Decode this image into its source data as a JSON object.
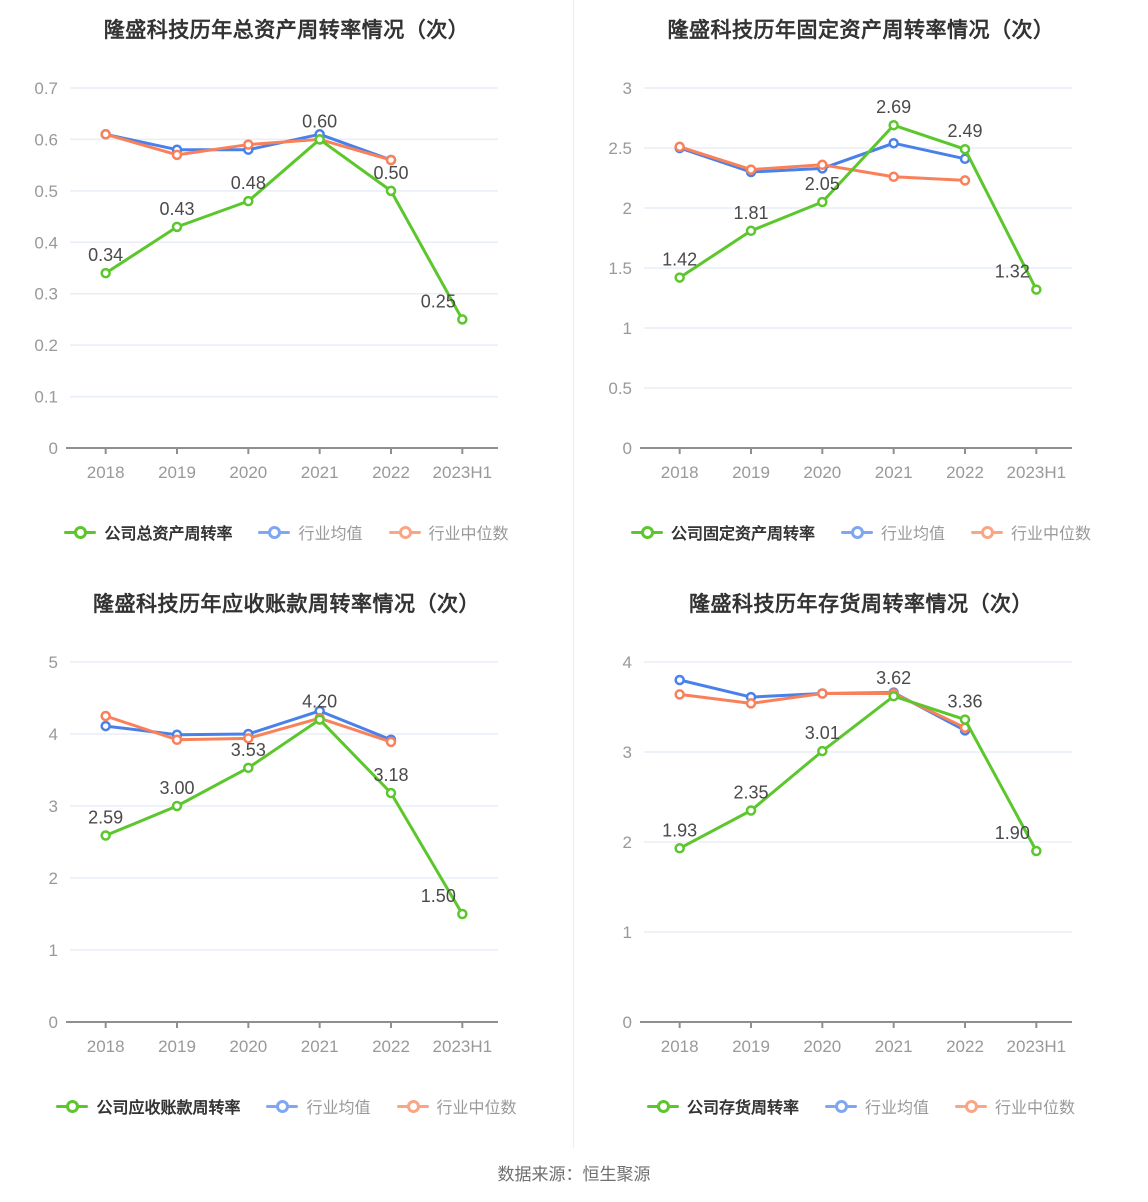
{
  "page": {
    "source_note": "数据来源：恒生聚源"
  },
  "colors": {
    "green": "#5BC72C",
    "blue": "#4A80EA",
    "orange": "#F9815A",
    "legend_blue": "#7FA6F1",
    "legend_orange": "#FAA584",
    "grid": "#E8EDF7",
    "axis_line": "#8F8F8F",
    "axis_text": "#999999",
    "value_label": "#4A4A4A",
    "title": "#333333"
  },
  "chart_data": [
    {
      "type": "line",
      "title": "隆盛科技历年总资产周转率情况（次）",
      "categories": [
        "2018",
        "2019",
        "2020",
        "2021",
        "2022",
        "2023H1"
      ],
      "ylim": [
        0,
        0.7
      ],
      "yticks": [
        "0.7",
        "0.6",
        "0.5",
        "0.4",
        "0.3",
        "0.2",
        "0.1",
        "0"
      ],
      "grid": true,
      "legend_position": "bottom",
      "series": [
        {
          "name": "公司总资产周转率",
          "color": "green",
          "values": [
            0.34,
            0.43,
            0.48,
            0.6,
            0.5,
            0.25
          ],
          "labels": [
            "0.34",
            "0.43",
            "0.48",
            "0.60",
            "0.50",
            "0.25"
          ]
        },
        {
          "name": "行业均值",
          "color": "blue",
          "values": [
            0.61,
            0.58,
            0.58,
            0.61,
            0.56
          ]
        },
        {
          "name": "行业中位数",
          "color": "orange",
          "values": [
            0.61,
            0.57,
            0.59,
            0.6,
            0.56
          ]
        }
      ]
    },
    {
      "type": "line",
      "title": "隆盛科技历年固定资产周转率情况（次）",
      "categories": [
        "2018",
        "2019",
        "2020",
        "2021",
        "2022",
        "2023H1"
      ],
      "ylim": [
        0,
        3
      ],
      "yticks": [
        "3",
        "2.5",
        "2",
        "1.5",
        "1",
        "0.5",
        "0"
      ],
      "grid": true,
      "legend_position": "bottom",
      "series": [
        {
          "name": "公司固定资产周转率",
          "color": "green",
          "values": [
            1.42,
            1.81,
            2.05,
            2.69,
            2.49,
            1.32
          ],
          "labels": [
            "1.42",
            "1.81",
            "2.05",
            "2.69",
            "2.49",
            "1.32"
          ]
        },
        {
          "name": "行业均值",
          "color": "blue",
          "values": [
            2.5,
            2.3,
            2.33,
            2.54,
            2.41
          ]
        },
        {
          "name": "行业中位数",
          "color": "orange",
          "values": [
            2.51,
            2.32,
            2.36,
            2.26,
            2.23
          ]
        }
      ]
    },
    {
      "type": "line",
      "title": "隆盛科技历年应收账款周转率情况（次）",
      "categories": [
        "2018",
        "2019",
        "2020",
        "2021",
        "2022",
        "2023H1"
      ],
      "ylim": [
        0,
        5
      ],
      "yticks": [
        "5",
        "4",
        "3",
        "2",
        "1",
        "0"
      ],
      "grid": true,
      "legend_position": "bottom",
      "series": [
        {
          "name": "公司应收账款周转率",
          "color": "green",
          "values": [
            2.59,
            3.0,
            3.53,
            4.2,
            3.18,
            1.5
          ],
          "labels": [
            "2.59",
            "3.00",
            "3.53",
            "4.20",
            "3.18",
            "1.50"
          ]
        },
        {
          "name": "行业均值",
          "color": "blue",
          "values": [
            4.11,
            3.99,
            4.0,
            4.32,
            3.92
          ]
        },
        {
          "name": "行业中位数",
          "color": "orange",
          "values": [
            4.25,
            3.92,
            3.94,
            4.22,
            3.89
          ]
        }
      ]
    },
    {
      "type": "line",
      "title": "隆盛科技历年存货周转率情况（次）",
      "categories": [
        "2018",
        "2019",
        "2020",
        "2021",
        "2022",
        "2023H1"
      ],
      "ylim": [
        0,
        4
      ],
      "yticks": [
        "4",
        "3",
        "2",
        "1",
        "0"
      ],
      "grid": true,
      "legend_position": "bottom",
      "series": [
        {
          "name": "公司存货周转率",
          "color": "green",
          "values": [
            1.93,
            2.35,
            3.01,
            3.62,
            3.36,
            1.9
          ],
          "labels": [
            "1.93",
            "2.35",
            "3.01",
            "3.62",
            "3.36",
            "1.90"
          ]
        },
        {
          "name": "行业均值",
          "color": "blue",
          "values": [
            3.8,
            3.61,
            3.65,
            3.66,
            3.24
          ]
        },
        {
          "name": "行业中位数",
          "color": "orange",
          "values": [
            3.64,
            3.54,
            3.65,
            3.65,
            3.27
          ]
        }
      ]
    }
  ]
}
